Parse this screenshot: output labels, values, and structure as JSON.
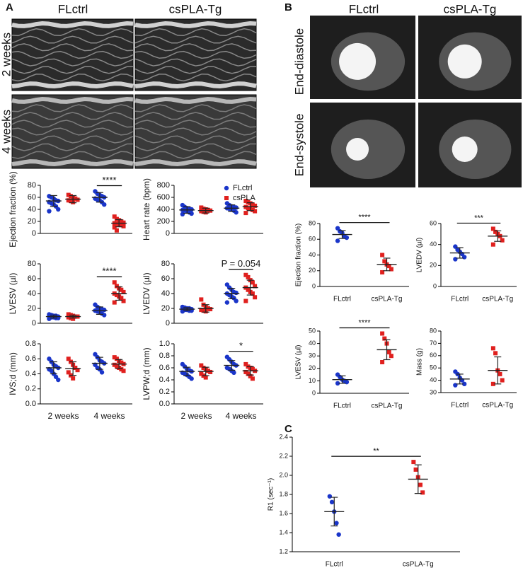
{
  "panels": {
    "A": {
      "letter": "A",
      "columns": [
        "FLctrl",
        "csPLA-Tg"
      ],
      "rows": [
        "2 weeks",
        "4 weeks"
      ]
    },
    "B": {
      "letter": "B",
      "columns": [
        "FLctrl",
        "csPLA-Tg"
      ],
      "rows": [
        "End-diastole",
        "End-systole"
      ]
    },
    "C": {
      "letter": "C"
    }
  },
  "chart_data": [
    {
      "type": "strip",
      "ylabel": "Ejection fraction (%)",
      "ylim": [
        0,
        80
      ],
      "yticks": [
        0,
        20,
        40,
        60,
        80
      ],
      "annotation": "****",
      "series": [
        {
          "color": "#1a35c9",
          "marker": "circle",
          "points": [
            [
              62,
              60,
              58,
              55,
              54,
              52,
              50,
              48,
              45,
              40,
              37
            ],
            [
              70,
              66,
              64,
              62,
              60,
              58,
              56,
              55,
              52,
              48
            ]
          ],
          "mean": [
            54,
            60
          ],
          "sd": [
            9,
            8
          ]
        },
        {
          "color": "#e0201e",
          "marker": "square",
          "points": [
            [
              64,
              62,
              60,
              58,
              56,
              55,
              54,
              52
            ],
            [
              28,
              24,
              22,
              20,
              18,
              17,
              16,
              15,
              14,
              12,
              10,
              5
            ]
          ],
          "mean": [
            57,
            17
          ],
          "sd": [
            6,
            6
          ]
        }
      ]
    },
    {
      "type": "strip",
      "ylabel": "Heart rate (bpm)",
      "ylim": [
        0,
        800
      ],
      "yticks": [
        0,
        200,
        400,
        600,
        800
      ],
      "legend": "upper right",
      "series": [
        {
          "name": "FLctrl",
          "color": "#1a35c9",
          "marker": "circle",
          "points": [
            [
              470,
              440,
              420,
              410,
              400,
              390,
              380,
              370,
              350,
              330,
              320
            ],
            [
              500,
              470,
              450,
              440,
              430,
              420,
              410,
              400,
              380,
              350
            ]
          ],
          "mean": [
            390,
            420
          ],
          "sd": [
            55,
            55
          ]
        },
        {
          "name": "csPLA",
          "color": "#e0201e",
          "marker": "square",
          "points": [
            [
              430,
              410,
              400,
              390,
              380,
              370,
              360,
              350
            ],
            [
              540,
              520,
              500,
              480,
              460,
              440,
              420,
              410,
              390,
              370,
              340
            ]
          ],
          "mean": [
            380,
            445
          ],
          "sd": [
            40,
            65
          ]
        }
      ]
    },
    {
      "type": "strip",
      "ylabel": "LVESV (µl)",
      "ylim": [
        0,
        80
      ],
      "yticks": [
        0,
        20,
        40,
        60,
        80
      ],
      "annotation": "****",
      "series": [
        {
          "color": "#1a35c9",
          "marker": "circle",
          "points": [
            [
              12,
              11,
              10,
              10,
              9,
              9,
              8,
              8,
              7,
              7,
              6
            ],
            [
              25,
              22,
              20,
              19,
              18,
              17,
              16,
              15,
              13,
              11
            ]
          ],
          "mean": [
            9,
            17
          ],
          "sd": [
            2,
            5
          ]
        },
        {
          "color": "#e0201e",
          "marker": "square",
          "points": [
            [
              12,
              11,
              10,
              9,
              9,
              8,
              7,
              6
            ],
            [
              55,
              50,
              47,
              45,
              42,
              40,
              38,
              36,
              34,
              30,
              28
            ]
          ],
          "mean": [
            9,
            40
          ],
          "sd": [
            2,
            9
          ]
        }
      ]
    },
    {
      "type": "strip",
      "ylabel": "LVEDV (µl)",
      "ylim": [
        0,
        80
      ],
      "yticks": [
        0,
        20,
        40,
        60,
        80
      ],
      "annotation": "P = 0.054",
      "series": [
        {
          "color": "#1a35c9",
          "marker": "circle",
          "points": [
            [
              22,
              21,
              20,
              20,
              19,
              19,
              18,
              18,
              17,
              17,
              16
            ],
            [
              52,
              48,
              45,
              42,
              41,
              40,
              38,
              36,
              34,
              30,
              28
            ]
          ],
          "mean": [
            19,
            40
          ],
          "sd": [
            2,
            7
          ]
        },
        {
          "color": "#e0201e",
          "marker": "square",
          "points": [
            [
              32,
              25,
              22,
              20,
              19,
              18,
              17,
              16
            ],
            [
              65,
              62,
              58,
              55,
              50,
              48,
              45,
              42,
              40,
              35,
              30
            ]
          ],
          "mean": [
            20,
            48
          ],
          "sd": [
            5,
            10
          ]
        }
      ]
    },
    {
      "type": "strip",
      "ylabel": "IVS;d (mm)",
      "categories": [
        "2 weeks",
        "4 weeks"
      ],
      "ylim": [
        0,
        0.8
      ],
      "yticks": [
        {
          "value": 0,
          "label": "0.0"
        },
        0.2,
        0.4,
        0.6,
        0.8
      ],
      "series": [
        {
          "color": "#1a35c9",
          "marker": "circle",
          "points": [
            [
              0.6,
              0.56,
              0.52,
              0.5,
              0.48,
              0.46,
              0.44,
              0.4,
              0.36,
              0.32
            ],
            [
              0.66,
              0.62,
              0.58,
              0.56,
              0.54,
              0.52,
              0.48,
              0.46,
              0.42
            ]
          ],
          "mean": [
            0.48,
            0.54
          ],
          "sd": [
            0.08,
            0.08
          ]
        },
        {
          "color": "#e0201e",
          "marker": "square",
          "points": [
            [
              0.6,
              0.56,
              0.52,
              0.48,
              0.45,
              0.42,
              0.38,
              0.34
            ],
            [
              0.62,
              0.6,
              0.57,
              0.55,
              0.53,
              0.52,
              0.5,
              0.48,
              0.46,
              0.44
            ]
          ],
          "mean": [
            0.47,
            0.53
          ],
          "sd": [
            0.09,
            0.06
          ]
        }
      ]
    },
    {
      "type": "strip",
      "ylabel": "LVPW;d (mm)",
      "categories": [
        "2 weeks",
        "4 weeks"
      ],
      "ylim": [
        0,
        1
      ],
      "yticks": [
        {
          "value": 0,
          "label": "0.0"
        },
        0.2,
        0.4,
        0.6,
        0.8,
        {
          "value": 1,
          "label": "1.0"
        }
      ],
      "annotation": "*",
      "series": [
        {
          "color": "#1a35c9",
          "marker": "circle",
          "points": [
            [
              0.66,
              0.62,
              0.58,
              0.56,
              0.54,
              0.52,
              0.5,
              0.48,
              0.45,
              0.42
            ],
            [
              0.78,
              0.74,
              0.7,
              0.66,
              0.64,
              0.6,
              0.58,
              0.55,
              0.52
            ]
          ],
          "mean": [
            0.54,
            0.64
          ],
          "sd": [
            0.07,
            0.08
          ]
        },
        {
          "color": "#e0201e",
          "marker": "square",
          "points": [
            [
              0.64,
              0.6,
              0.57,
              0.55,
              0.53,
              0.5,
              0.47,
              0.44
            ],
            [
              0.66,
              0.62,
              0.6,
              0.58,
              0.55,
              0.53,
              0.5,
              0.46,
              0.42
            ]
          ],
          "mean": [
            0.54,
            0.55
          ],
          "sd": [
            0.07,
            0.07
          ]
        }
      ]
    },
    {
      "type": "strip",
      "ylabel": "Ejection fraction (%)",
      "categories": [
        "FLctrl",
        "csPLA-Tg"
      ],
      "ylim": [
        0,
        80
      ],
      "yticks": [
        0,
        20,
        40,
        60,
        80
      ],
      "annotation": "****",
      "series": [
        {
          "colors": [
            "#1a35c9",
            "#e0201e"
          ],
          "markers": [
            "circle",
            "square"
          ],
          "points": [
            [
              74,
              70,
              68,
              64,
              62,
              58
            ],
            [
              40,
              32,
              28,
              26,
              22,
              18
            ]
          ],
          "mean": [
            66,
            28
          ],
          "sd": [
            5,
            8
          ]
        }
      ]
    },
    {
      "type": "strip",
      "ylabel": "LVEDV (µl)",
      "categories": [
        "FLctrl",
        "csPLA-Tg"
      ],
      "ylim": [
        0,
        60
      ],
      "yticks": [
        0,
        20,
        40,
        60
      ],
      "annotation": "***",
      "series": [
        {
          "colors": [
            "#1a35c9",
            "#e0201e"
          ],
          "markers": [
            "circle",
            "square"
          ],
          "points": [
            [
              38,
              35,
              33,
              31,
              28,
              26
            ],
            [
              55,
              52,
              50,
              48,
              44,
              40
            ]
          ],
          "mean": [
            32,
            48
          ],
          "sd": [
            5,
            5
          ]
        }
      ]
    },
    {
      "type": "strip",
      "ylabel": "LVESV (µl)",
      "categories": [
        "FLctrl",
        "csPLA-Tg"
      ],
      "ylim": [
        0,
        50
      ],
      "yticks": [
        0,
        10,
        20,
        30,
        40,
        50
      ],
      "annotation": "****",
      "series": [
        {
          "colors": [
            "#1a35c9",
            "#e0201e"
          ],
          "markers": [
            "circle",
            "square"
          ],
          "points": [
            [
              15,
              13,
              11,
              10,
              9,
              8
            ],
            [
              48,
              44,
              40,
              33,
              30,
              25
            ]
          ],
          "mean": [
            11,
            35
          ],
          "sd": [
            3,
            8
          ]
        }
      ]
    },
    {
      "type": "strip",
      "ylabel": "Mass (g)",
      "categories": [
        "FLctrl",
        "csPLA-Tg"
      ],
      "ylim": [
        30,
        80
      ],
      "yticks": [
        30,
        40,
        50,
        60,
        70,
        80
      ],
      "series": [
        {
          "colors": [
            "#1a35c9",
            "#e0201e"
          ],
          "markers": [
            "circle",
            "square"
          ],
          "points": [
            [
              47,
              45,
              42,
              40,
              37,
              36
            ],
            [
              66,
              62,
              48,
              45,
              40,
              37
            ]
          ],
          "mean": [
            41,
            48
          ],
          "sd": [
            4,
            11
          ]
        }
      ]
    },
    {
      "type": "strip",
      "ylabel": "R1 (sec⁻¹)",
      "categories": [
        "FLctrl",
        "csPLA-Tg"
      ],
      "ylim": [
        1.2,
        2.4
      ],
      "yticks": [
        1.2,
        1.4,
        1.6,
        1.8,
        {
          "value": 2,
          "label": "2.0"
        },
        2.2,
        2.4
      ],
      "annotation": "**",
      "series": [
        {
          "colors": [
            "#1a35c9",
            "#e0201e"
          ],
          "markers": [
            "circle",
            "square"
          ],
          "points": [
            [
              1.78,
              1.72,
              1.62,
              1.5,
              1.38
            ],
            [
              2.14,
              2.06,
              1.98,
              1.9,
              1.82
            ]
          ],
          "mean": [
            1.62,
            1.96
          ],
          "sd": [
            0.15,
            0.15
          ]
        }
      ]
    }
  ]
}
